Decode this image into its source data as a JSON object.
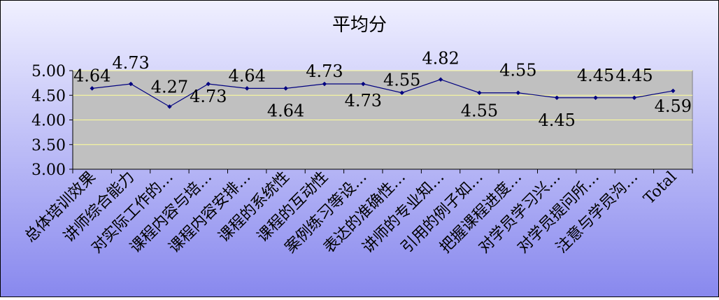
{
  "chart_data": {
    "type": "line",
    "title": "平均分",
    "xlabel": "",
    "ylabel": "",
    "ylim": [
      3.0,
      5.0
    ],
    "yticks": [
      "3.00",
      "3.50",
      "4.00",
      "4.50",
      "5.00"
    ],
    "ytick_values": [
      3.0,
      3.5,
      4.0,
      4.5,
      5.0
    ],
    "grid": true,
    "legend": "none",
    "categories": [
      "总体培训效果",
      "讲师综合能力",
      "对实际工作的…",
      "课程内容与培…",
      "课程内容安排…",
      "课程的系统性",
      "课程的互动性",
      "案例练习等设…",
      "表达的准确性…",
      "讲师的专业知…",
      "引用的例子如…",
      "把握课程进度…",
      "对学员学习兴…",
      "对学员提问所…",
      "注意与学员沟…",
      "Total"
    ],
    "values": [
      4.64,
      4.73,
      4.27,
      4.73,
      4.64,
      4.64,
      4.73,
      4.73,
      4.55,
      4.82,
      4.55,
      4.55,
      4.45,
      4.45,
      4.45,
      4.59
    ],
    "data_labels": [
      "4.64",
      "4.73",
      "4.27",
      "4.73",
      "4.64",
      "4.64",
      "4.73",
      "4.73",
      "4.55",
      "4.82",
      "4.55",
      "4.55",
      "4.45",
      "4.45",
      "4.45",
      "4.59"
    ],
    "colors": {
      "background_top": "#f0f0ff",
      "background_bottom": "#8888ee",
      "plot_area": "#c0c0c0",
      "gridline": "#ffff99",
      "line": "#000080",
      "text": "#000000"
    }
  }
}
